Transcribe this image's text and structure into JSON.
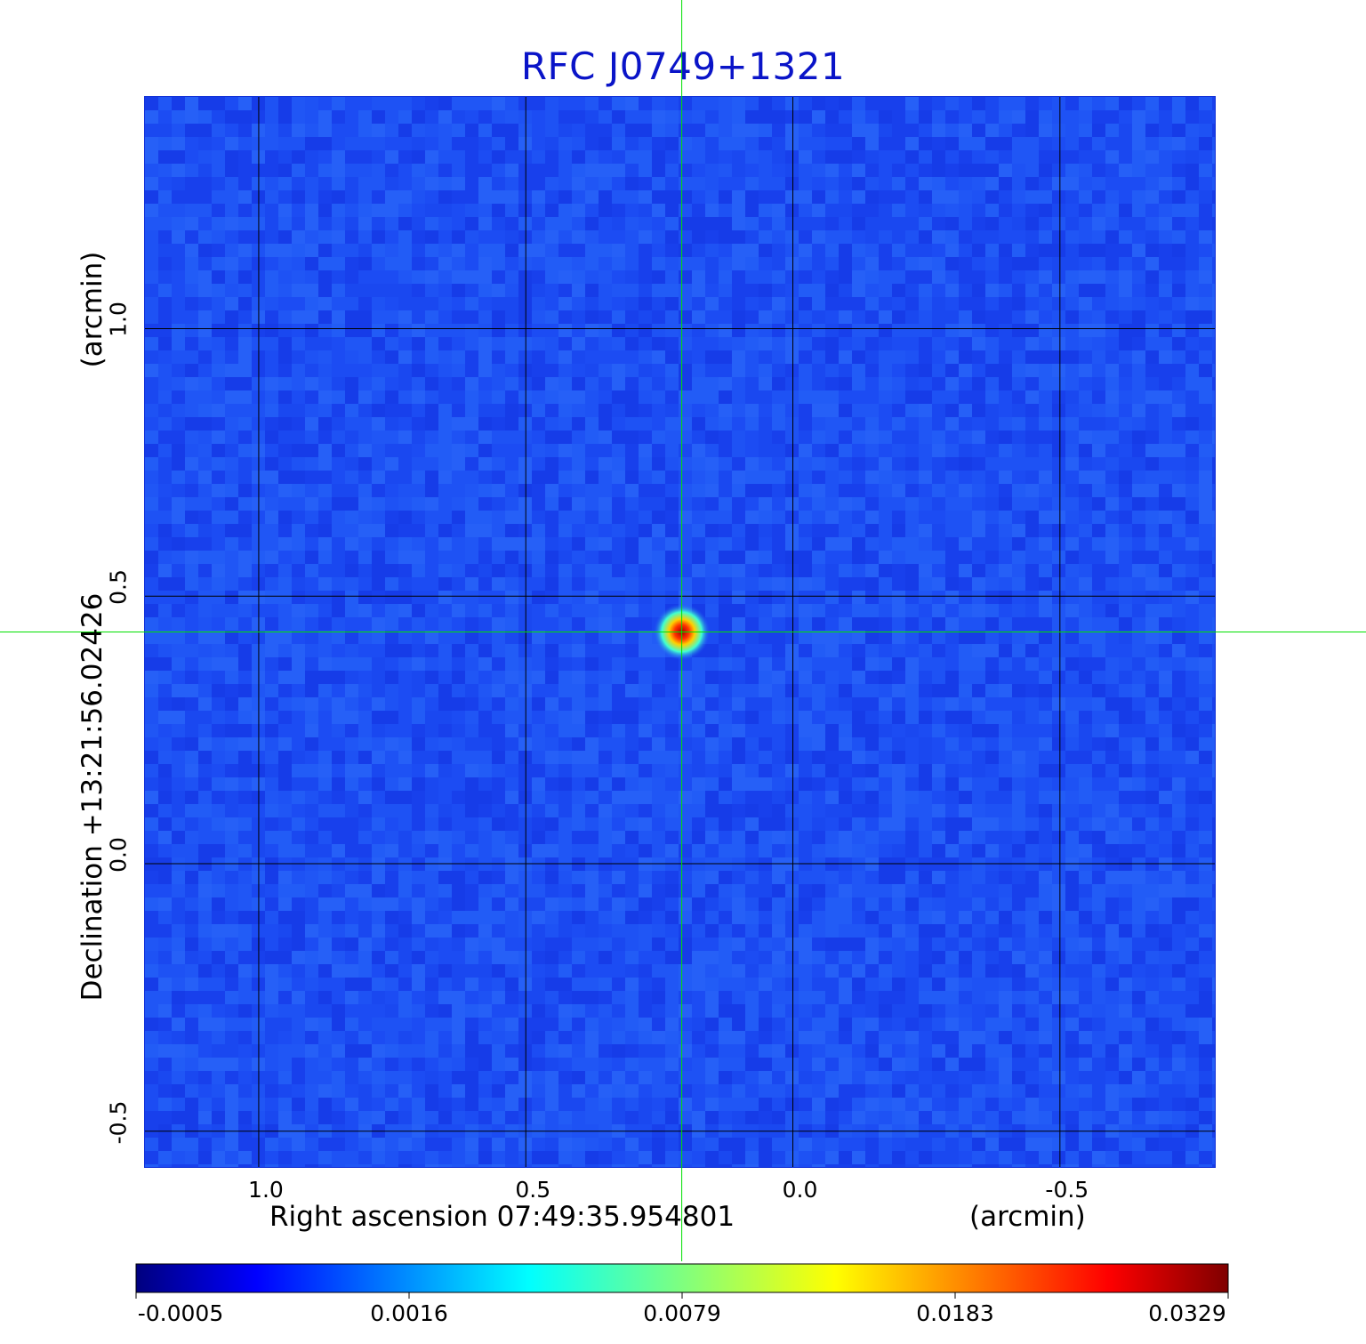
{
  "title": "RFC J0749+1321",
  "colors": {
    "title": "#0a14c8",
    "crosshair": "#00e000",
    "grid": "#000000",
    "background_pixel": "#1e50f5"
  },
  "chart_data": {
    "type": "heatmap",
    "title": "RFC J0749+1321",
    "xlabel": "Right ascension  07:49:35.954801",
    "xunit": "(arcmin)",
    "ylabel": "Declination  +13:21:56.02426",
    "yunit": "(arcmin)",
    "x_ticks": [
      "1.0",
      "0.5",
      "0.0",
      "-0.5"
    ],
    "x_tick_values": [
      1.0,
      0.5,
      0.0,
      -0.5
    ],
    "y_ticks": [
      "1.0",
      "0.5",
      "0.0",
      "-0.5"
    ],
    "y_tick_values": [
      1.0,
      0.5,
      0.0,
      -0.5
    ],
    "xlim": [
      1.213,
      -0.79
    ],
    "ylim": [
      -0.567,
      1.433
    ],
    "grid": true,
    "source_peak": {
      "ra_offset_arcmin": 0.208,
      "dec_offset_arcmin": 0.433
    },
    "crosshair": {
      "ra_offset_arcmin": 0.208,
      "dec_offset_arcmin": 0.433
    },
    "colorbar": {
      "ticks": [
        "-0.0005",
        "0.0016",
        "0.0079",
        "0.0183",
        "0.0329"
      ],
      "colormap": "jet",
      "position": "bottom"
    }
  }
}
